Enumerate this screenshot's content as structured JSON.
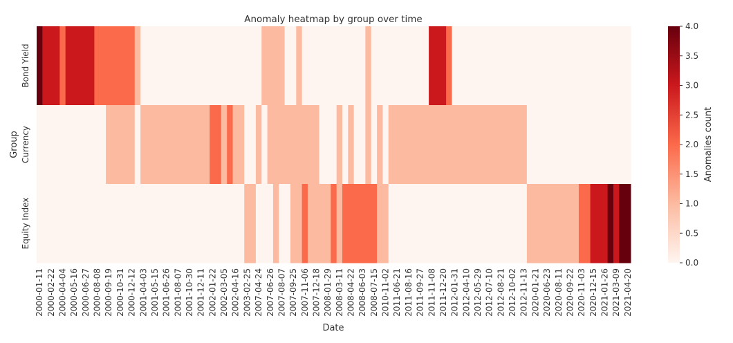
{
  "chart_data": {
    "type": "heatmap",
    "title": "Anomaly heatmap by group over time",
    "x_label": "Date",
    "y_label": "Group",
    "colorbar_label": "Anomalies count",
    "rows": [
      "Bond Yield",
      "Currency",
      "Equity Index"
    ],
    "categories": [
      "2000-01-11",
      null,
      "2000-02-22",
      null,
      "2000-04-04",
      null,
      "2000-05-16",
      null,
      "2000-06-27",
      null,
      "2000-08-08",
      null,
      "2000-09-19",
      null,
      "2000-10-31",
      null,
      "2000-12-12",
      null,
      "2001-04-03",
      null,
      "2001-05-15",
      null,
      "2001-06-26",
      null,
      "2001-08-07",
      null,
      "2001-10-30",
      null,
      "2001-12-11",
      null,
      "2002-01-22",
      null,
      "2002-03-05",
      null,
      "2002-04-16",
      null,
      "2003-02-25",
      null,
      "2007-04-24",
      null,
      "2007-06-26",
      null,
      "2007-08-07",
      null,
      "2007-09-25",
      null,
      "2007-11-06",
      null,
      "2007-12-18",
      null,
      "2008-01-29",
      null,
      "2008-03-11",
      null,
      "2008-04-22",
      null,
      "2008-06-03",
      null,
      "2008-07-15",
      null,
      "2010-11-02",
      null,
      "2011-06-21",
      null,
      "2011-08-16",
      null,
      "2011-09-27",
      null,
      "2011-11-08",
      null,
      "2011-12-20",
      null,
      "2012-01-31",
      null,
      "2012-04-10",
      null,
      "2012-05-29",
      null,
      "2012-07-10",
      null,
      "2012-08-21",
      null,
      "2012-10-02",
      null,
      "2012-11-13",
      null,
      "2020-01-21",
      null,
      "2020-06-23",
      null,
      "2020-08-11",
      null,
      "2020-09-22",
      null,
      "2020-11-03",
      null,
      "2020-12-15",
      null,
      "2021-01-26",
      null,
      "2021-03-09",
      null,
      "2021-04-20"
    ],
    "z": [
      [
        4,
        3,
        3,
        3,
        2,
        3,
        3,
        3,
        3,
        3,
        2,
        2,
        2,
        2,
        2,
        2,
        2,
        1,
        0,
        0,
        0,
        0,
        0,
        0,
        0,
        0,
        0,
        0,
        0,
        0,
        0,
        0,
        0,
        0,
        0,
        0,
        0,
        0,
        0,
        1,
        1,
        1,
        1,
        0,
        0,
        1,
        0,
        0,
        0,
        0,
        0,
        0,
        0,
        0,
        0,
        0,
        0,
        1,
        0,
        0,
        0,
        0,
        0,
        0,
        0,
        0,
        0,
        0,
        3,
        3,
        3,
        2,
        0,
        0,
        0,
        0,
        0,
        0,
        0,
        0,
        0,
        0,
        0,
        0,
        0,
        0,
        0,
        0,
        0,
        0,
        0,
        0,
        0,
        0,
        0,
        0,
        0,
        0,
        0,
        0,
        0,
        0,
        0
      ],
      [
        0,
        0,
        0,
        0,
        0,
        0,
        0,
        0,
        0,
        0,
        0,
        0,
        1,
        1,
        1,
        1,
        1,
        0,
        1,
        1,
        1,
        1,
        1,
        1,
        1,
        1,
        1,
        1,
        1,
        1,
        2,
        2,
        1,
        2,
        1,
        1,
        0,
        0,
        1,
        0,
        1,
        1,
        1,
        1,
        1,
        1,
        1,
        1,
        1,
        0,
        0,
        0,
        1,
        0,
        1,
        0,
        0,
        1,
        0,
        1,
        0,
        1,
        1,
        1,
        1,
        1,
        1,
        1,
        1,
        1,
        1,
        1,
        1,
        1,
        1,
        1,
        1,
        1,
        1,
        1,
        1,
        1,
        1,
        1,
        1,
        0,
        0,
        0,
        0,
        0,
        0,
        0,
        0,
        0,
        0,
        0,
        0,
        0,
        0,
        0,
        0,
        0,
        0
      ],
      [
        0,
        0,
        0,
        0,
        0,
        0,
        0,
        0,
        0,
        0,
        0,
        0,
        0,
        0,
        0,
        0,
        0,
        0,
        0,
        0,
        0,
        0,
        0,
        0,
        0,
        0,
        0,
        0,
        0,
        0,
        0,
        0,
        0,
        0,
        0,
        0,
        1,
        1,
        0,
        0,
        0,
        1,
        0,
        0,
        1,
        1,
        2,
        1,
        1,
        1,
        1,
        2,
        1,
        2,
        2,
        2,
        2,
        2,
        2,
        1,
        1,
        0,
        0,
        0,
        0,
        0,
        0,
        0,
        0,
        0,
        0,
        0,
        0,
        0,
        0,
        0,
        0,
        0,
        0,
        0,
        0,
        0,
        0,
        0,
        0,
        1,
        1,
        1,
        1,
        1,
        1,
        1,
        1,
        1,
        2,
        2,
        3,
        3,
        3,
        4,
        3,
        4,
        4
      ]
    ],
    "zlim": [
      0,
      4
    ],
    "colors": [
      "#fff5f0",
      "#fcbba1",
      "#fb6a4a",
      "#cb181d",
      "#67000d"
    ],
    "colorbar_ticks": [
      {
        "value": 0,
        "label": "0.0"
      },
      {
        "value": 0.5,
        "label": "0.5"
      },
      {
        "value": 1,
        "label": "1.0"
      },
      {
        "value": 1.5,
        "label": "1.5"
      },
      {
        "value": 2,
        "label": "2.0"
      },
      {
        "value": 2.5,
        "label": "2.5"
      },
      {
        "value": 3,
        "label": "3.0"
      },
      {
        "value": 3.5,
        "label": "3.5"
      },
      {
        "value": 4,
        "label": "4.0"
      }
    ]
  }
}
